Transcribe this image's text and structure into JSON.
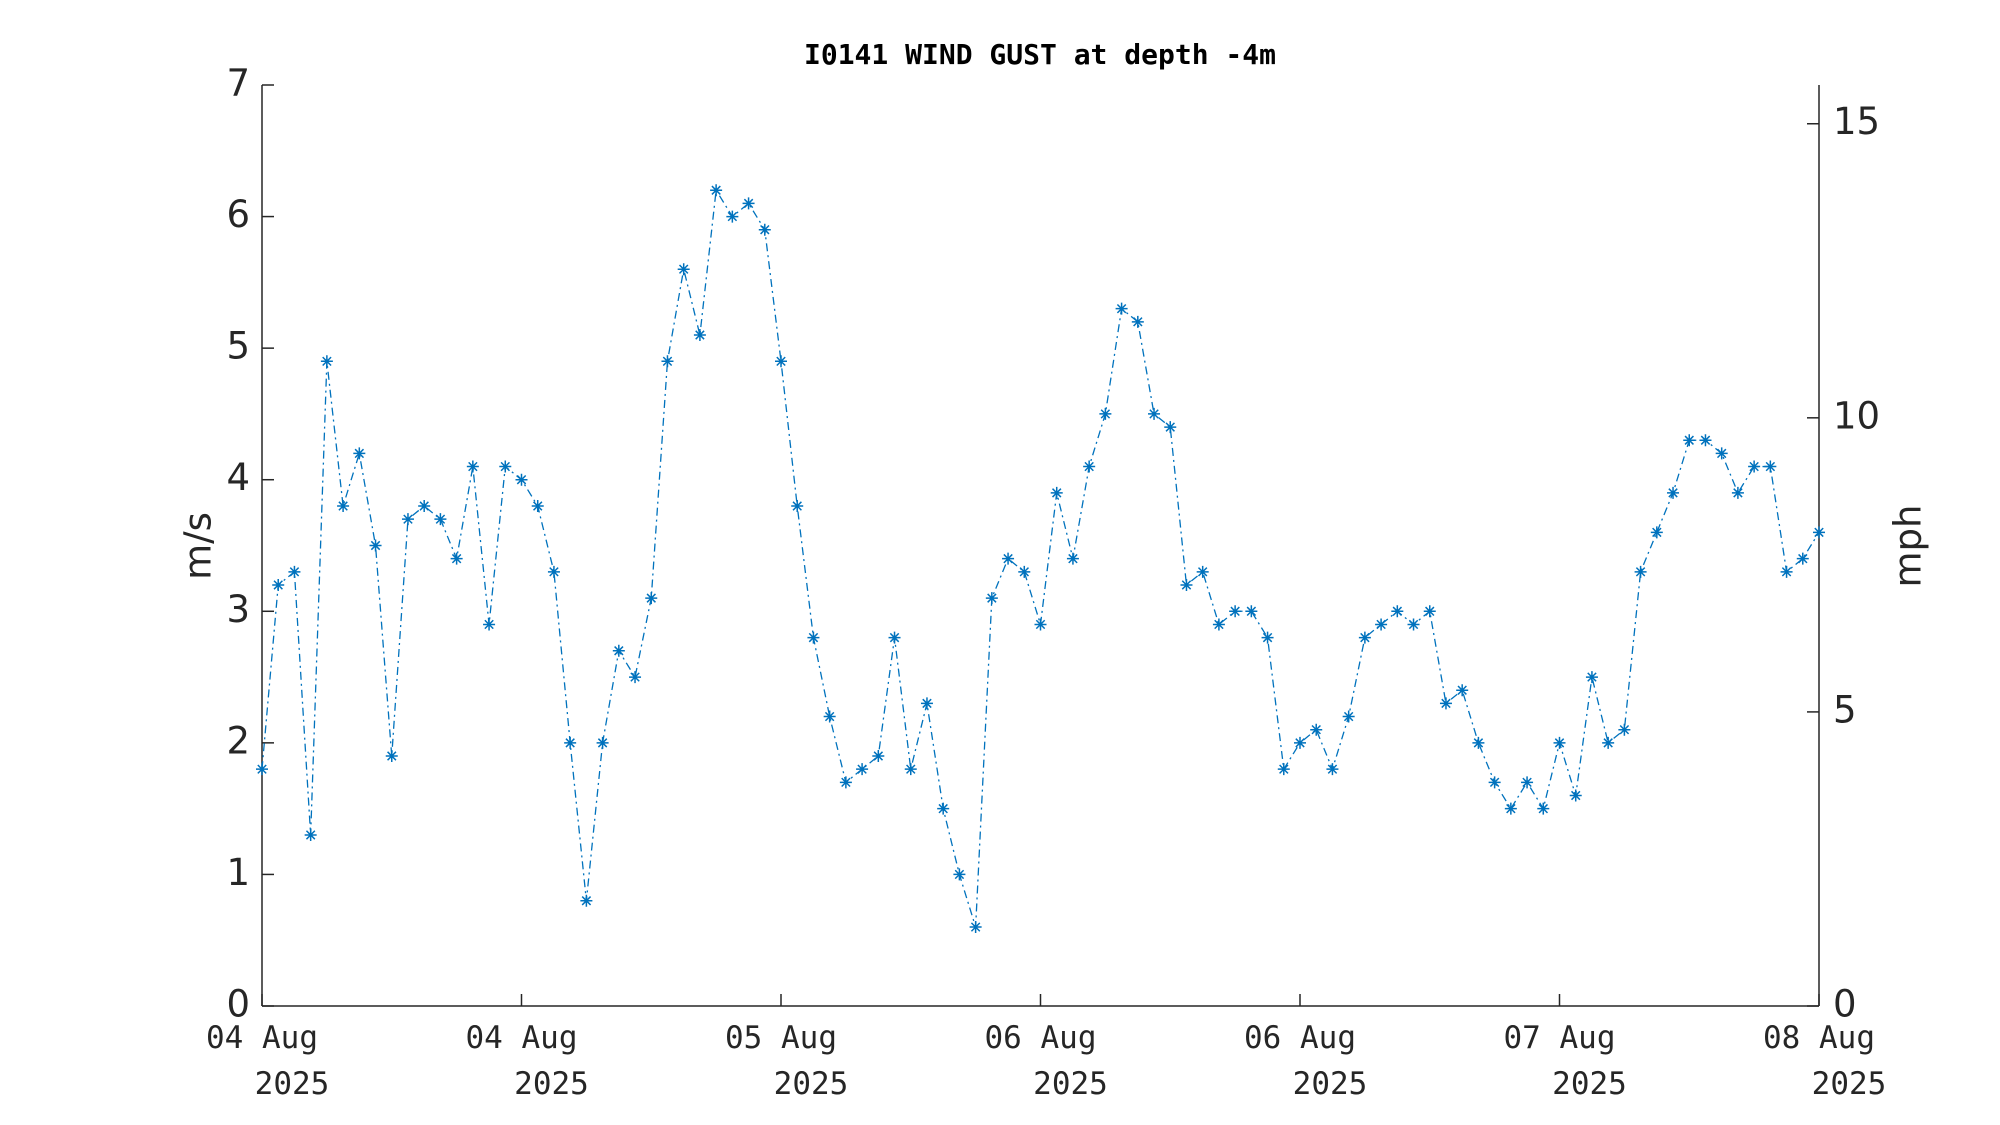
{
  "chart_data": {
    "type": "line",
    "title": "I0141 WIND GUST at depth -4m",
    "y_label": "m/s",
    "y2_label": "mph",
    "x": [
      0,
      1,
      2,
      3,
      4,
      5,
      6,
      7,
      8,
      9,
      10,
      11,
      12,
      13,
      14,
      15,
      16,
      17,
      18,
      19,
      20,
      21,
      22,
      23,
      24,
      25,
      26,
      27,
      28,
      29,
      30,
      31,
      32,
      33,
      34,
      35,
      36,
      37,
      38,
      39,
      40,
      41,
      42,
      43,
      44,
      45,
      46,
      47,
      48,
      49,
      50,
      51,
      52,
      53,
      54,
      55,
      56,
      57,
      58,
      59,
      60,
      61,
      62,
      63,
      64,
      65,
      66,
      67,
      68,
      69,
      70,
      71,
      72,
      73,
      74,
      75,
      76,
      77,
      78,
      79,
      80,
      81,
      82,
      83,
      84,
      85,
      86,
      87,
      88,
      89,
      90,
      91,
      92,
      93,
      94,
      95,
      96
    ],
    "values": [
      1.8,
      3.2,
      3.3,
      1.3,
      4.9,
      3.8,
      4.2,
      3.5,
      1.9,
      3.7,
      3.8,
      3.7,
      3.4,
      4.1,
      2.9,
      4.1,
      4.0,
      3.8,
      3.3,
      2.0,
      0.8,
      2.0,
      2.7,
      2.5,
      3.1,
      4.9,
      5.6,
      5.1,
      6.2,
      6.0,
      6.1,
      5.9,
      4.9,
      3.8,
      2.8,
      2.2,
      1.7,
      1.8,
      1.9,
      2.8,
      1.8,
      2.3,
      1.5,
      1.0,
      0.6,
      3.1,
      3.4,
      3.3,
      2.9,
      3.9,
      3.4,
      4.1,
      4.5,
      5.3,
      5.2,
      4.5,
      4.4,
      3.2,
      3.3,
      2.9,
      3.0,
      3.0,
      2.8,
      1.8,
      2.0,
      2.1,
      1.8,
      2.2,
      2.8,
      2.9,
      3.0,
      2.9,
      3.0,
      2.3,
      2.4,
      2.0,
      1.7,
      1.5,
      1.7,
      1.5,
      2.0,
      1.6,
      2.5,
      2.0,
      2.1,
      3.3,
      3.6,
      3.9,
      4.3,
      4.3,
      4.2,
      3.9,
      4.1,
      4.1,
      3.3,
      3.4,
      3.6
    ],
    "color": "#0072bd",
    "xlim": [
      0,
      96
    ],
    "xticks": [
      {
        "value": 0,
        "label": "04 Aug 2025"
      },
      {
        "value": 16,
        "label": "04 Aug 2025"
      },
      {
        "value": 32,
        "label": "05 Aug 2025"
      },
      {
        "value": 48,
        "label": "06 Aug 2025"
      },
      {
        "value": 64,
        "label": "06 Aug 2025"
      },
      {
        "value": 80,
        "label": "07 Aug 2025"
      },
      {
        "value": 96,
        "label": "08 Aug 2025"
      }
    ],
    "ylim": [
      0,
      7
    ],
    "yticks": [
      0,
      1,
      2,
      3,
      4,
      5,
      6,
      7
    ],
    "y2lim": [
      0,
      15.6586
    ],
    "y2ticks": [
      0,
      5,
      10,
      15
    ],
    "grid": false
  }
}
